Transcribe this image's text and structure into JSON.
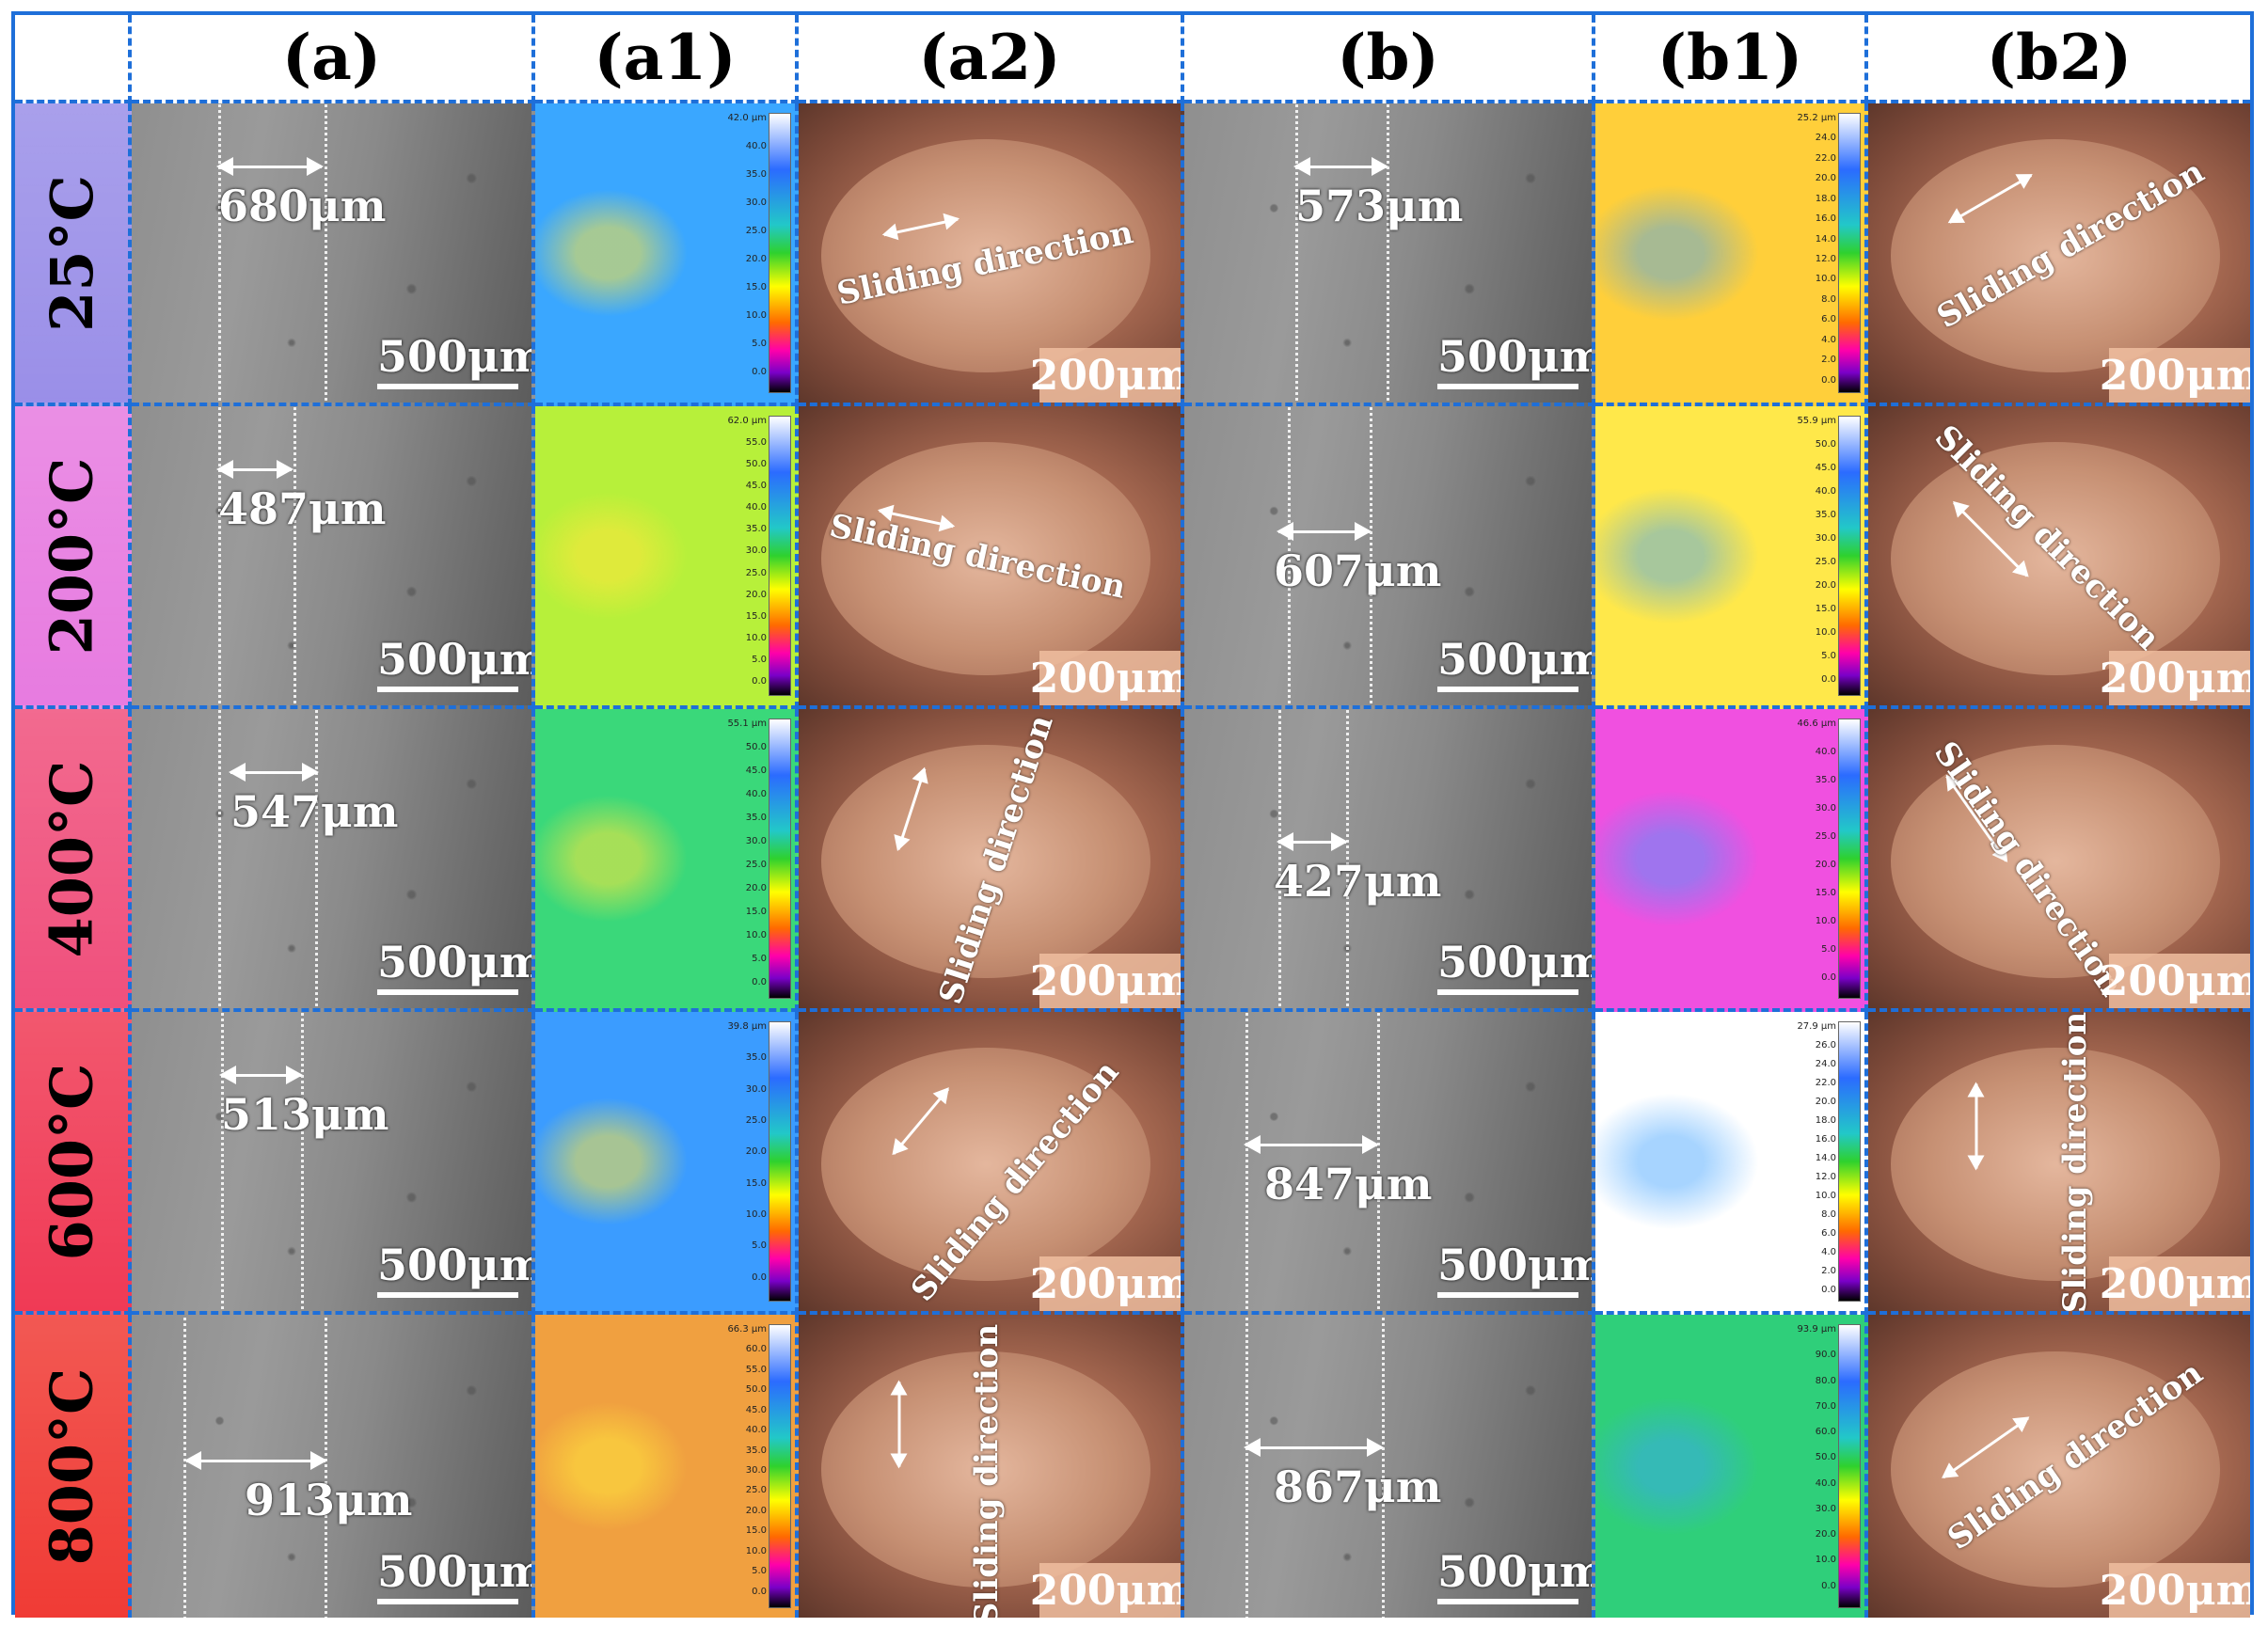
{
  "headers": [
    "(a)",
    "(a1)",
    "(a2)",
    "(b)",
    "(b1)",
    "(b2)"
  ],
  "temperatures": [
    "25°C",
    "200°C",
    "400°C",
    "600°C",
    "800°C"
  ],
  "temperature_colors": [
    "#9a8fe8",
    "#e77be0",
    "#f0507c",
    "#f03a55",
    "#f03b35"
  ],
  "scale_sem": "500μm",
  "scale_optical": "200μm",
  "sliding_label": "Sliding direction",
  "widths_a": [
    "680μm",
    "487μm",
    "547μm",
    "513μm",
    "913μm"
  ],
  "widths_b": [
    "573μm",
    "607μm",
    "427μm",
    "847μm",
    "867μm"
  ],
  "colorbars_a1": [
    [
      "42.0 μm",
      "40.0",
      "35.0",
      "30.0",
      "25.0",
      "20.0",
      "15.0",
      "10.0",
      "5.0",
      "0.0"
    ],
    [
      "62.0 μm",
      "55.0",
      "50.0",
      "45.0",
      "40.0",
      "35.0",
      "30.0",
      "25.0",
      "20.0",
      "15.0",
      "10.0",
      "5.0",
      "0.0"
    ],
    [
      "55.1 μm",
      "50.0",
      "45.0",
      "40.0",
      "35.0",
      "30.0",
      "25.0",
      "20.0",
      "15.0",
      "10.0",
      "5.0",
      "0.0"
    ],
    [
      "39.8 μm",
      "35.0",
      "30.0",
      "25.0",
      "20.0",
      "15.0",
      "10.0",
      "5.0",
      "0.0"
    ],
    [
      "66.3 μm",
      "60.0",
      "55.0",
      "50.0",
      "45.0",
      "40.0",
      "35.0",
      "30.0",
      "25.0",
      "20.0",
      "15.0",
      "10.0",
      "5.0",
      "0.0"
    ]
  ],
  "colorbars_b1": [
    [
      "25.2 μm",
      "24.0",
      "22.0",
      "20.0",
      "18.0",
      "16.0",
      "14.0",
      "12.0",
      "10.0",
      "8.0",
      "6.0",
      "4.0",
      "2.0",
      "0.0"
    ],
    [
      "55.9 μm",
      "50.0",
      "45.0",
      "40.0",
      "35.0",
      "30.0",
      "25.0",
      "20.0",
      "15.0",
      "10.0",
      "5.0",
      "0.0"
    ],
    [
      "46.6 μm",
      "40.0",
      "35.0",
      "30.0",
      "25.0",
      "20.0",
      "15.0",
      "10.0",
      "5.0",
      "0.0"
    ],
    [
      "27.9 μm",
      "26.0",
      "24.0",
      "22.0",
      "20.0",
      "18.0",
      "16.0",
      "14.0",
      "12.0",
      "10.0",
      "8.0",
      "6.0",
      "4.0",
      "2.0",
      "0.0"
    ],
    [
      "93.9 μm",
      "90.0",
      "80.0",
      "70.0",
      "60.0",
      "50.0",
      "40.0",
      "30.0",
      "20.0",
      "10.0",
      "0.0"
    ]
  ],
  "colors": {
    "frame": "#1e6fd9"
  }
}
